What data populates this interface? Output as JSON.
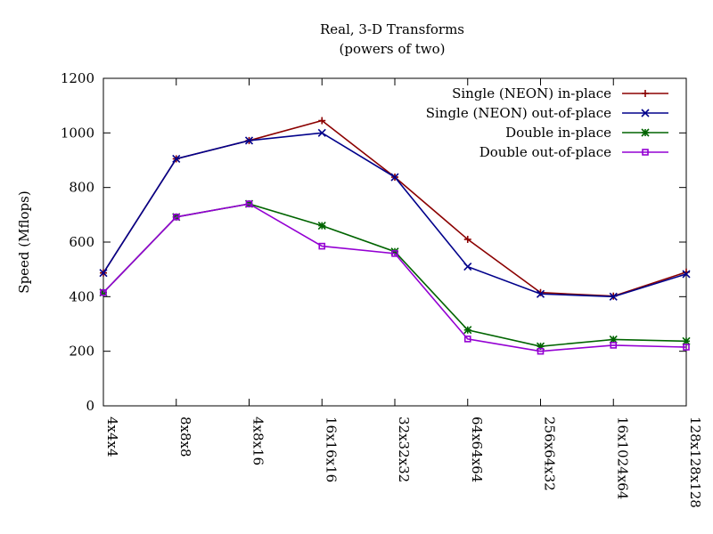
{
  "chart_data": {
    "type": "line",
    "title": "Real, 3-D Transforms",
    "subtitle": "(powers of two)",
    "xlabel": "",
    "ylabel": "Speed (Mflops)",
    "ylim": [
      0,
      1200
    ],
    "yticks": [
      0,
      200,
      400,
      600,
      800,
      1000,
      1200
    ],
    "grid": false,
    "legend_position": "top-right",
    "categories": [
      "4x4x4",
      "8x8x8",
      "4x8x16",
      "16x16x16",
      "32x32x32",
      "64x64x64",
      "256x64x32",
      "16x1024x64",
      "128x128x128"
    ],
    "series": [
      {
        "name": "Single (NEON) in-place",
        "color": "#8b0000",
        "marker": "plus",
        "values": [
          487,
          905,
          972,
          1045,
          838,
          610,
          415,
          402,
          490
        ]
      },
      {
        "name": "Single (NEON) out-of-place",
        "color": "#00008b",
        "marker": "cross",
        "values": [
          487,
          905,
          972,
          1000,
          838,
          510,
          410,
          400,
          483
        ]
      },
      {
        "name": "Double in-place",
        "color": "#006400",
        "marker": "star",
        "values": [
          415,
          692,
          740,
          660,
          565,
          278,
          218,
          243,
          237
        ]
      },
      {
        "name": "Double out-of-place",
        "color": "#9400d3",
        "marker": "square",
        "values": [
          415,
          692,
          740,
          585,
          558,
          245,
          200,
          222,
          215
        ]
      }
    ]
  }
}
